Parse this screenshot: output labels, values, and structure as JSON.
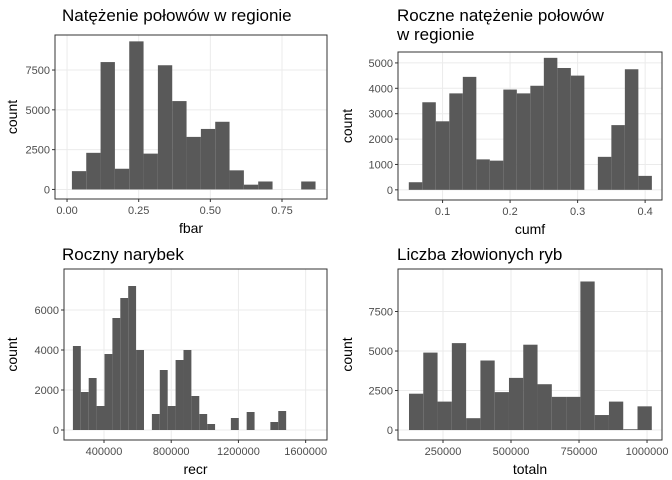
{
  "chart_data": [
    {
      "type": "histogram",
      "title": "Natężenie połowów w regionie",
      "xlabel": "fbar",
      "ylabel": "count",
      "color": "#595959",
      "grid": true,
      "bins": [
        0.017,
        0.067,
        0.117,
        0.167,
        0.217,
        0.267,
        0.317,
        0.367,
        0.417,
        0.467,
        0.517,
        0.567,
        0.617,
        0.667,
        0.717,
        0.767,
        0.817,
        0.867
      ],
      "counts": [
        1150,
        2300,
        8000,
        1300,
        9300,
        2250,
        7800,
        5550,
        3300,
        3800,
        4250,
        1200,
        300,
        500,
        0,
        0,
        500
      ],
      "xlim": [
        -0.042,
        0.907
      ],
      "xticks": [
        {
          "value": 0,
          "label": "0.00"
        },
        0.25,
        {
          "value": 0.5,
          "label": "0.50"
        },
        0.75
      ],
      "ylim": [
        -600,
        9700
      ],
      "yticks": [
        0,
        2500,
        5000,
        7500
      ]
    },
    {
      "type": "histogram",
      "title": "Roczne natężenie połowów\nw regionie",
      "xlabel": "cumf",
      "ylabel": "count",
      "color": "#595959",
      "grid": true,
      "bins": [
        0.05,
        0.07,
        0.09,
        0.11,
        0.13,
        0.15,
        0.17,
        0.19,
        0.21,
        0.23,
        0.25,
        0.27,
        0.29,
        0.31,
        0.33,
        0.35,
        0.37,
        0.39,
        0.41
      ],
      "counts": [
        300,
        3450,
        2700,
        3800,
        4450,
        1200,
        1150,
        3950,
        3800,
        4100,
        5200,
        4800,
        4500,
        0,
        1300,
        2550,
        4750,
        550
      ],
      "xlim": [
        0.034,
        0.425
      ],
      "xticks": [
        0.1,
        0.2,
        0.3,
        0.4
      ],
      "ylim": [
        -400,
        5430
      ],
      "yticks": [
        0,
        1000,
        2000,
        3000,
        4000,
        5000
      ]
    },
    {
      "type": "histogram",
      "title": "Roczny narybek",
      "xlabel": "recr",
      "ylabel": "count",
      "color": "#595959",
      "grid": true,
      "bins": [
        215000,
        262000,
        309000,
        356000,
        403000,
        450000,
        497000,
        544000,
        591000,
        638000,
        685000,
        732000,
        779000,
        826000,
        873000,
        920000,
        967000,
        1014000,
        1061000,
        1108000,
        1155000,
        1202000,
        1249000,
        1296000,
        1343000,
        1390000,
        1437000,
        1484000
      ],
      "counts": [
        4200,
        1900,
        2600,
        1200,
        3800,
        5600,
        6600,
        7200,
        4000,
        0,
        800,
        3000,
        1200,
        3500,
        4000,
        1700,
        800,
        300,
        0,
        0,
        600,
        0,
        900,
        0,
        0,
        400,
        950
      ],
      "xlim": [
        162000,
        1727000
      ],
      "xticks": [
        400000,
        800000,
        1200000,
        1600000
      ],
      "ylim": [
        -500,
        8050
      ],
      "yticks": [
        0,
        2000,
        4000,
        6000
      ]
    },
    {
      "type": "histogram",
      "title": "Liczba złowionych ryb",
      "xlabel": "totaln",
      "ylabel": "count",
      "color": "#595959",
      "grid": true,
      "bins": [
        125000,
        177500,
        230000,
        282500,
        335000,
        387500,
        440000,
        492500,
        545000,
        597500,
        650000,
        702500,
        755000,
        807500,
        860000,
        912500,
        965000,
        1017500
      ],
      "counts": [
        2300,
        4900,
        1800,
        5500,
        750,
        4400,
        2400,
        3300,
        5400,
        2900,
        2100,
        2100,
        9400,
        950,
        1800,
        50,
        1500
      ],
      "xlim": [
        84600,
        1055000
      ],
      "xticks": [
        250000,
        500000,
        750000,
        1000000
      ],
      "ylim": [
        -630,
        10190
      ],
      "yticks": [
        0,
        2500,
        5000,
        7500
      ]
    }
  ]
}
